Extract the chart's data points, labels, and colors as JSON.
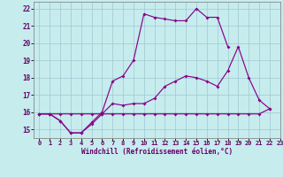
{
  "xlabel": "Windchill (Refroidissement éolien,°C)",
  "background_color": "#c6ecee",
  "grid_color": "#a0c8d0",
  "line_color": "#880088",
  "x_values": [
    0,
    1,
    2,
    3,
    4,
    5,
    6,
    7,
    8,
    9,
    10,
    11,
    12,
    13,
    14,
    15,
    16,
    17,
    18,
    19,
    20,
    21,
    22
  ],
  "series_bottom": [
    15.9,
    15.9,
    15.9,
    15.9,
    15.9,
    15.9,
    15.9,
    15.9,
    15.9,
    15.9,
    15.9,
    15.9,
    15.9,
    15.9,
    15.9,
    15.9,
    15.9,
    15.9,
    15.9,
    15.9,
    15.9,
    15.9,
    16.2
  ],
  "series_mid": [
    15.9,
    15.9,
    15.5,
    14.8,
    14.8,
    15.3,
    15.9,
    16.5,
    16.4,
    16.5,
    16.5,
    16.8,
    17.5,
    17.8,
    18.1,
    18.0,
    17.8,
    17.5,
    18.4,
    19.8,
    18.0,
    16.7,
    16.2
  ],
  "series_top": [
    15.9,
    15.9,
    15.5,
    14.8,
    14.8,
    15.4,
    16.0,
    17.8,
    18.1,
    19.0,
    21.7,
    21.5,
    21.4,
    21.3,
    21.3,
    22.0,
    21.5,
    21.5,
    19.8,
    null,
    null,
    null,
    null
  ],
  "xlim": [
    -0.5,
    23
  ],
  "ylim": [
    14.5,
    22.4
  ],
  "yticks": [
    15,
    16,
    17,
    18,
    19,
    20,
    21,
    22
  ],
  "xticks": [
    0,
    1,
    2,
    3,
    4,
    5,
    6,
    7,
    8,
    9,
    10,
    11,
    12,
    13,
    14,
    15,
    16,
    17,
    18,
    19,
    20,
    21,
    22,
    23
  ]
}
